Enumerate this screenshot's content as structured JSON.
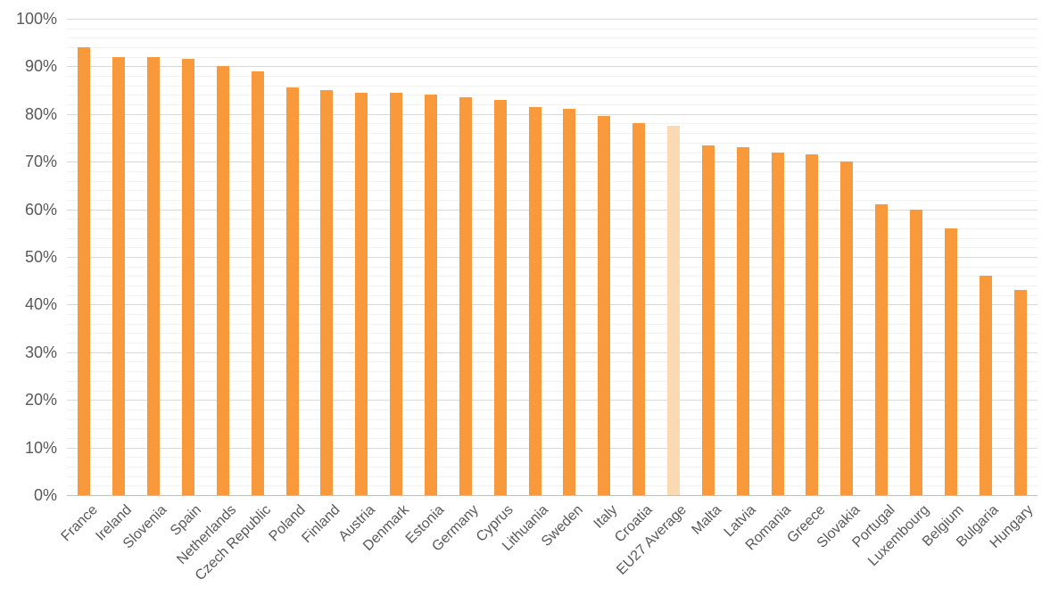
{
  "chart_data": {
    "type": "bar",
    "title": "",
    "xlabel": "",
    "ylabel": "",
    "categories": [
      "France",
      "Ireland",
      "Slovenia",
      "Spain",
      "Netherlands",
      "Czech Republic",
      "Poland",
      "Finland",
      "Austria",
      "Denmark",
      "Estonia",
      "Germany",
      "Cyprus",
      "Lithuania",
      "Sweden",
      "Italy",
      "Croatia",
      "EU27 Average",
      "Malta",
      "Latvia",
      "Romania",
      "Greece",
      "Slovakia",
      "Portugal",
      "Luxembourg",
      "Belgium",
      "Bulgaria",
      "Hungary"
    ],
    "values": [
      94,
      92,
      92,
      91.5,
      90,
      89,
      85.5,
      85,
      84.5,
      84.5,
      84,
      83.5,
      83,
      81.5,
      81,
      79.5,
      78,
      77.5,
      73.5,
      73,
      72,
      71.5,
      70,
      61,
      60,
      56,
      46,
      43
    ],
    "value_unit": "%",
    "highlight_category": "EU27 Average",
    "ylim": [
      0,
      100
    ],
    "y_tick_interval": 10,
    "y_minor_tick_interval": 2,
    "y_tick_labels": [
      "0%",
      "10%",
      "20%",
      "30%",
      "40%",
      "50%",
      "60%",
      "70%",
      "80%",
      "90%",
      "100%"
    ],
    "grid": true,
    "legend": "none",
    "colors": {
      "bar": "#F8993B",
      "highlight_bar": "#FBD9B3",
      "minor_gridline": "#F1F1F1",
      "major_gridline": "#D9D9D9",
      "axis_line": "#BFBFBF",
      "label_text": "#595959",
      "background": "#FFFFFF"
    }
  }
}
